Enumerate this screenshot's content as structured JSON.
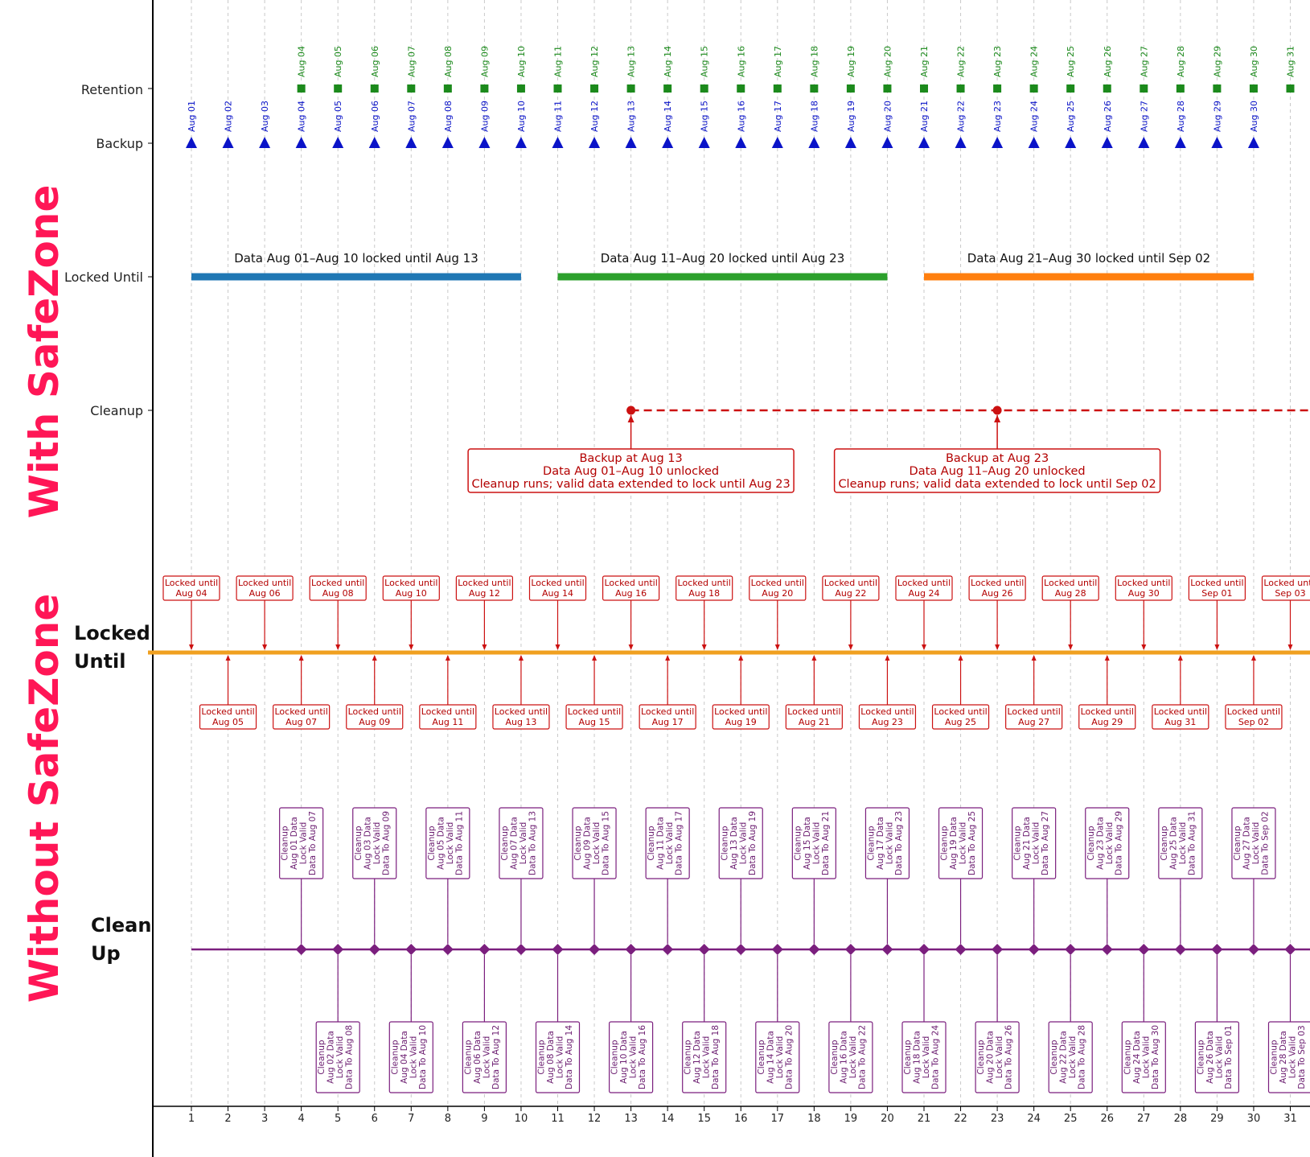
{
  "colors": {
    "accent": "#ff1656",
    "backup": "#0a13c8",
    "retention": "#1c8a1c",
    "lock1": "#1f77b4",
    "lock2": "#2ca02c",
    "lock3": "#ff7f0e",
    "cleanup_red": "#cc1111",
    "orange_line": "#f0a020",
    "purple": "#7b1f7e",
    "grid": "#c9c9c9"
  },
  "section_titles": {
    "top": "With SafeZone",
    "bottom": "Without SafeZone"
  },
  "rows": {
    "retention": "Retention",
    "backup": "Backup",
    "locked_until": "Locked Until",
    "cleanup": "Cleanup",
    "locked_until_b_1": "Locked",
    "locked_until_b_2": "Until",
    "cleanup_b_1": "Clean",
    "cleanup_b_2": "Up"
  },
  "chart_data": {
    "type": "timeline",
    "x_axis": {
      "ticks": [
        1,
        2,
        3,
        4,
        5,
        6,
        7,
        8,
        9,
        10,
        11,
        12,
        13,
        14,
        15,
        16,
        17,
        18,
        19,
        20,
        21,
        22,
        23,
        24,
        25,
        26,
        27,
        28,
        29,
        30,
        31
      ],
      "range": [
        0,
        32
      ]
    },
    "with_safezone": {
      "backup": {
        "marker": "triangle",
        "days": [
          1,
          2,
          3,
          4,
          5,
          6,
          7,
          8,
          9,
          10,
          11,
          12,
          13,
          14,
          15,
          16,
          17,
          18,
          19,
          20,
          21,
          22,
          23,
          24,
          25,
          26,
          27,
          28,
          29,
          30
        ],
        "labels": [
          "Aug 01",
          "Aug 02",
          "Aug 03",
          "Aug 04",
          "Aug 05",
          "Aug 06",
          "Aug 07",
          "Aug 08",
          "Aug 09",
          "Aug 10",
          "Aug 11",
          "Aug 12",
          "Aug 13",
          "Aug 14",
          "Aug 15",
          "Aug 16",
          "Aug 17",
          "Aug 18",
          "Aug 19",
          "Aug 20",
          "Aug 21",
          "Aug 22",
          "Aug 23",
          "Aug 24",
          "Aug 25",
          "Aug 26",
          "Aug 27",
          "Aug 28",
          "Aug 29",
          "Aug 30"
        ]
      },
      "retention": {
        "marker": "square",
        "days": [
          4,
          5,
          6,
          7,
          8,
          9,
          10,
          11,
          12,
          13,
          14,
          15,
          16,
          17,
          18,
          19,
          20,
          21,
          22,
          23,
          24,
          25,
          26,
          27,
          28,
          29,
          30,
          31
        ],
        "labels": [
          "Aug 04",
          "Aug 05",
          "Aug 06",
          "Aug 07",
          "Aug 08",
          "Aug 09",
          "Aug 10",
          "Aug 11",
          "Aug 12",
          "Aug 13",
          "Aug 14",
          "Aug 15",
          "Aug 16",
          "Aug 17",
          "Aug 18",
          "Aug 19",
          "Aug 20",
          "Aug 21",
          "Aug 22",
          "Aug 23",
          "Aug 24",
          "Aug 25",
          "Aug 26",
          "Aug 27",
          "Aug 28",
          "Aug 29",
          "Aug 30",
          "Aug 31"
        ]
      },
      "locked_until": [
        {
          "start": 1,
          "end": 10,
          "color": "#1f77b4",
          "label": "Data Aug 01–Aug 10 locked until Aug 13"
        },
        {
          "start": 11,
          "end": 20,
          "color": "#2ca02c",
          "label": "Data Aug 11–Aug 20 locked until Aug 23"
        },
        {
          "start": 21,
          "end": 30,
          "color": "#ff7f0e",
          "label": "Data Aug 21–Aug 30 locked until Sep 02"
        }
      ],
      "cleanup": {
        "start_day": 13,
        "events": [
          {
            "day": 13,
            "lines": [
              "Backup at Aug 13",
              "Data Aug 01–Aug 10 unlocked",
              "Cleanup runs; valid data extended to lock until Aug 23"
            ]
          },
          {
            "day": 23,
            "lines": [
              "Backup at Aug 23",
              "Data Aug 11–Aug 20 unlocked",
              "Cleanup runs; valid data extended to lock until Sep 02"
            ]
          }
        ]
      }
    },
    "without_safezone": {
      "locked_until": [
        {
          "day": 1,
          "position": "above",
          "lines": [
            "Locked until",
            "Aug 04"
          ]
        },
        {
          "day": 2,
          "position": "below",
          "lines": [
            "Locked until",
            "Aug 05"
          ]
        },
        {
          "day": 3,
          "position": "above",
          "lines": [
            "Locked until",
            "Aug 06"
          ]
        },
        {
          "day": 4,
          "position": "below",
          "lines": [
            "Locked until",
            "Aug 07"
          ]
        },
        {
          "day": 5,
          "position": "above",
          "lines": [
            "Locked until",
            "Aug 08"
          ]
        },
        {
          "day": 6,
          "position": "below",
          "lines": [
            "Locked until",
            "Aug 09"
          ]
        },
        {
          "day": 7,
          "position": "above",
          "lines": [
            "Locked until",
            "Aug 10"
          ]
        },
        {
          "day": 8,
          "position": "below",
          "lines": [
            "Locked until",
            "Aug 11"
          ]
        },
        {
          "day": 9,
          "position": "above",
          "lines": [
            "Locked until",
            "Aug 12"
          ]
        },
        {
          "day": 10,
          "position": "below",
          "lines": [
            "Locked until",
            "Aug 13"
          ]
        },
        {
          "day": 11,
          "position": "above",
          "lines": [
            "Locked until",
            "Aug 14"
          ]
        },
        {
          "day": 12,
          "position": "below",
          "lines": [
            "Locked until",
            "Aug 15"
          ]
        },
        {
          "day": 13,
          "position": "above",
          "lines": [
            "Locked until",
            "Aug 16"
          ]
        },
        {
          "day": 14,
          "position": "below",
          "lines": [
            "Locked until",
            "Aug 17"
          ]
        },
        {
          "day": 15,
          "position": "above",
          "lines": [
            "Locked until",
            "Aug 18"
          ]
        },
        {
          "day": 16,
          "position": "below",
          "lines": [
            "Locked until",
            "Aug 19"
          ]
        },
        {
          "day": 17,
          "position": "above",
          "lines": [
            "Locked until",
            "Aug 20"
          ]
        },
        {
          "day": 18,
          "position": "below",
          "lines": [
            "Locked until",
            "Aug 21"
          ]
        },
        {
          "day": 19,
          "position": "above",
          "lines": [
            "Locked until",
            "Aug 22"
          ]
        },
        {
          "day": 20,
          "position": "below",
          "lines": [
            "Locked until",
            "Aug 23"
          ]
        },
        {
          "day": 21,
          "position": "above",
          "lines": [
            "Locked until",
            "Aug 24"
          ]
        },
        {
          "day": 22,
          "position": "below",
          "lines": [
            "Locked until",
            "Aug 25"
          ]
        },
        {
          "day": 23,
          "position": "above",
          "lines": [
            "Locked until",
            "Aug 26"
          ]
        },
        {
          "day": 24,
          "position": "below",
          "lines": [
            "Locked until",
            "Aug 27"
          ]
        },
        {
          "day": 25,
          "position": "above",
          "lines": [
            "Locked until",
            "Aug 28"
          ]
        },
        {
          "day": 26,
          "position": "below",
          "lines": [
            "Locked until",
            "Aug 29"
          ]
        },
        {
          "day": 27,
          "position": "above",
          "lines": [
            "Locked until",
            "Aug 30"
          ]
        },
        {
          "day": 28,
          "position": "below",
          "lines": [
            "Locked until",
            "Aug 31"
          ]
        },
        {
          "day": 29,
          "position": "above",
          "lines": [
            "Locked until",
            "Sep 01"
          ]
        },
        {
          "day": 30,
          "position": "below",
          "lines": [
            "Locked until",
            "Sep 02"
          ]
        },
        {
          "day": 31,
          "position": "above",
          "lines": [
            "Locked until",
            "Sep 03"
          ]
        }
      ],
      "cleanup": [
        {
          "day": 4,
          "position": "above",
          "lines": [
            "Cleanup",
            "Aug 01 Data",
            "Lock Valid",
            "Data To Aug 07"
          ]
        },
        {
          "day": 5,
          "position": "below",
          "lines": [
            "Cleanup",
            "Aug 02 Data",
            "Lock Valid",
            "Data To Aug 08"
          ]
        },
        {
          "day": 6,
          "position": "above",
          "lines": [
            "Cleanup",
            "Aug 03 Data",
            "Lock Valid",
            "Data To Aug 09"
          ]
        },
        {
          "day": 7,
          "position": "below",
          "lines": [
            "Cleanup",
            "Aug 04 Data",
            "Lock Valid",
            "Data To Aug 10"
          ]
        },
        {
          "day": 8,
          "position": "above",
          "lines": [
            "Cleanup",
            "Aug 05 Data",
            "Lock Valid",
            "Data To Aug 11"
          ]
        },
        {
          "day": 9,
          "position": "below",
          "lines": [
            "Cleanup",
            "Aug 06 Data",
            "Lock Valid",
            "Data To Aug 12"
          ]
        },
        {
          "day": 10,
          "position": "above",
          "lines": [
            "Cleanup",
            "Aug 07 Data",
            "Lock Valid",
            "Data To Aug 13"
          ]
        },
        {
          "day": 11,
          "position": "below",
          "lines": [
            "Cleanup",
            "Aug 08 Data",
            "Lock Valid",
            "Data To Aug 14"
          ]
        },
        {
          "day": 12,
          "position": "above",
          "lines": [
            "Cleanup",
            "Aug 09 Data",
            "Lock Valid",
            "Data To Aug 15"
          ]
        },
        {
          "day": 13,
          "position": "below",
          "lines": [
            "Cleanup",
            "Aug 10 Data",
            "Lock Valid",
            "Data To Aug 16"
          ]
        },
        {
          "day": 14,
          "position": "above",
          "lines": [
            "Cleanup",
            "Aug 11 Data",
            "Lock Valid",
            "Data To Aug 17"
          ]
        },
        {
          "day": 15,
          "position": "below",
          "lines": [
            "Cleanup",
            "Aug 12 Data",
            "Lock Valid",
            "Data To Aug 18"
          ]
        },
        {
          "day": 16,
          "position": "above",
          "lines": [
            "Cleanup",
            "Aug 13 Data",
            "Lock Valid",
            "Data To Aug 19"
          ]
        },
        {
          "day": 17,
          "position": "below",
          "lines": [
            "Cleanup",
            "Aug 14 Data",
            "Lock Valid",
            "Data To Aug 20"
          ]
        },
        {
          "day": 18,
          "position": "above",
          "lines": [
            "Cleanup",
            "Aug 15 Data",
            "Lock Valid",
            "Data To Aug 21"
          ]
        },
        {
          "day": 19,
          "position": "below",
          "lines": [
            "Cleanup",
            "Aug 16 Data",
            "Lock Valid",
            "Data To Aug 22"
          ]
        },
        {
          "day": 20,
          "position": "above",
          "lines": [
            "Cleanup",
            "Aug 17 Data",
            "Lock Valid",
            "Data To Aug 23"
          ]
        },
        {
          "day": 21,
          "position": "below",
          "lines": [
            "Cleanup",
            "Aug 18 Data",
            "Lock Valid",
            "Data To Aug 24"
          ]
        },
        {
          "day": 22,
          "position": "above",
          "lines": [
            "Cleanup",
            "Aug 19 Data",
            "Lock Valid",
            "Data To Aug 25"
          ]
        },
        {
          "day": 23,
          "position": "below",
          "lines": [
            "Cleanup",
            "Aug 20 Data",
            "Lock Valid",
            "Data To Aug 26"
          ]
        },
        {
          "day": 24,
          "position": "above",
          "lines": [
            "Cleanup",
            "Aug 21 Data",
            "Lock Valid",
            "Data To Aug 27"
          ]
        },
        {
          "day": 25,
          "position": "below",
          "lines": [
            "Cleanup",
            "Aug 22 Data",
            "Lock Valid",
            "Data To Aug 28"
          ]
        },
        {
          "day": 26,
          "position": "above",
          "lines": [
            "Cleanup",
            "Aug 23 Data",
            "Lock Valid",
            "Data To Aug 29"
          ]
        },
        {
          "day": 27,
          "position": "below",
          "lines": [
            "Cleanup",
            "Aug 24 Data",
            "Lock Valid",
            "Data To Aug 30"
          ]
        },
        {
          "day": 28,
          "position": "above",
          "lines": [
            "Cleanup",
            "Aug 25 Data",
            "Lock Valid",
            "Data To Aug 31"
          ]
        },
        {
          "day": 29,
          "position": "below",
          "lines": [
            "Cleanup",
            "Aug 26 Data",
            "Lock Valid",
            "Data To Sep 01"
          ]
        },
        {
          "day": 30,
          "position": "above",
          "lines": [
            "Cleanup",
            "Aug 27 Data",
            "Lock Valid",
            "Data To Sep 02"
          ]
        },
        {
          "day": 31,
          "position": "below",
          "lines": [
            "Cleanup",
            "Aug 28 Data",
            "Lock Valid",
            "Data To Sep 03"
          ]
        }
      ]
    }
  }
}
